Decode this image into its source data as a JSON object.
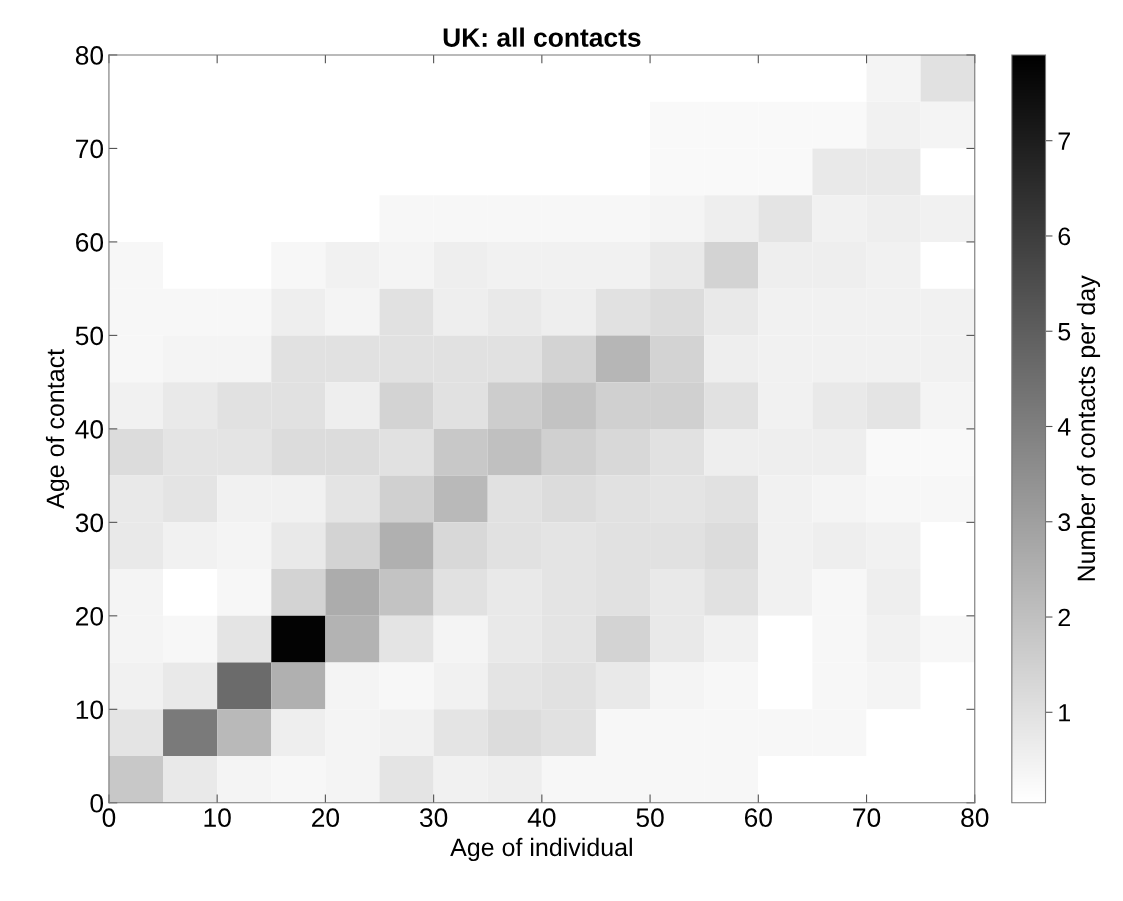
{
  "chart_data": {
    "type": "heatmap",
    "title": "UK: all contacts",
    "xlabel": "Age of individual",
    "ylabel": "Age of contact",
    "clabel": "Number of contacts per day",
    "x": [
      2.5,
      7.5,
      12.5,
      17.5,
      22.5,
      27.5,
      32.5,
      37.5,
      42.5,
      47.5,
      52.5,
      57.5,
      62.5,
      67.5,
      72.5,
      77.5
    ],
    "y": [
      77.5,
      72.5,
      67.5,
      62.5,
      57.5,
      52.5,
      47.5,
      42.5,
      37.5,
      32.5,
      27.5,
      22.5,
      17.5,
      12.5,
      7.5,
      2.5
    ],
    "cells": [
      [
        0.05,
        0.05,
        0.05,
        0.05,
        0.05,
        0.05,
        0.05,
        0.05,
        0.05,
        0.05,
        0.05,
        0.05,
        0.05,
        0.05,
        0.4,
        1.0
      ],
      [
        0.05,
        0.05,
        0.05,
        0.05,
        0.05,
        0.05,
        0.05,
        0.05,
        0.05,
        0.05,
        0.25,
        0.25,
        0.25,
        0.25,
        0.5,
        0.4
      ],
      [
        0.05,
        0.05,
        0.05,
        0.05,
        0.05,
        0.05,
        0.05,
        0.05,
        0.05,
        0.05,
        0.25,
        0.25,
        0.25,
        0.75,
        0.75,
        0.05
      ],
      [
        0.05,
        0.05,
        0.05,
        0.05,
        0.05,
        0.3,
        0.3,
        0.3,
        0.3,
        0.3,
        0.4,
        0.6,
        0.9,
        0.5,
        0.6,
        0.5
      ],
      [
        0.3,
        0.05,
        0.05,
        0.3,
        0.5,
        0.4,
        0.6,
        0.5,
        0.5,
        0.5,
        0.75,
        1.4,
        0.6,
        0.6,
        0.5,
        0.05
      ],
      [
        0.3,
        0.3,
        0.3,
        0.6,
        0.4,
        1.0,
        0.6,
        0.75,
        0.6,
        1.0,
        1.15,
        0.75,
        0.5,
        0.5,
        0.5,
        0.5
      ],
      [
        0.3,
        0.4,
        0.4,
        1.0,
        1.0,
        1.0,
        1.0,
        1.0,
        1.4,
        2.3,
        1.4,
        0.6,
        0.5,
        0.5,
        0.5,
        0.5
      ],
      [
        0.5,
        0.75,
        1.0,
        1.0,
        0.6,
        1.4,
        1.0,
        1.6,
        1.9,
        1.5,
        1.5,
        1.0,
        0.5,
        0.75,
        0.9,
        0.4
      ],
      [
        1.15,
        0.9,
        0.9,
        1.15,
        1.15,
        1.0,
        1.75,
        2.0,
        1.5,
        1.25,
        1.0,
        0.6,
        0.6,
        0.6,
        0.25,
        0.25
      ],
      [
        0.75,
        0.9,
        0.5,
        0.5,
        0.9,
        1.5,
        2.2,
        1.0,
        1.15,
        1.0,
        0.9,
        1.0,
        0.5,
        0.4,
        0.3,
        0.3
      ],
      [
        0.75,
        0.5,
        0.4,
        0.75,
        1.4,
        2.5,
        1.25,
        1.0,
        0.9,
        1.0,
        1.0,
        1.15,
        0.5,
        0.6,
        0.5,
        0.05
      ],
      [
        0.4,
        0.05,
        0.3,
        1.4,
        2.6,
        1.9,
        1.0,
        0.75,
        0.9,
        1.0,
        0.75,
        1.0,
        0.5,
        0.3,
        0.6,
        0.05
      ],
      [
        0.4,
        0.3,
        0.9,
        7.8,
        2.4,
        0.9,
        0.4,
        0.75,
        0.9,
        1.4,
        0.75,
        0.5,
        0.05,
        0.3,
        0.5,
        0.3
      ],
      [
        0.5,
        0.75,
        4.6,
        2.5,
        0.4,
        0.3,
        0.5,
        0.9,
        1.0,
        0.75,
        0.4,
        0.3,
        0.05,
        0.3,
        0.4,
        0.05
      ],
      [
        0.9,
        4.15,
        2.2,
        0.6,
        0.4,
        0.5,
        0.9,
        1.15,
        1.0,
        0.3,
        0.3,
        0.3,
        0.3,
        0.3,
        0.05,
        0.05
      ],
      [
        1.75,
        0.75,
        0.4,
        0.3,
        0.4,
        0.9,
        0.5,
        0.6,
        0.3,
        0.3,
        0.3,
        0.3,
        0.05,
        0.05,
        0.05,
        0.05
      ]
    ],
    "colors": [
      "#ffffff",
      "#000000"
    ],
    "clim": [
      0.05,
      7.9
    ],
    "cticks": [
      1,
      2,
      3,
      4,
      5,
      6,
      7
    ],
    "xlim": [
      0,
      80
    ],
    "ylim": [
      0,
      80
    ],
    "xticks": [
      0,
      10,
      20,
      30,
      40,
      50,
      60,
      70,
      80
    ],
    "yticks": [
      0,
      10,
      20,
      30,
      40,
      50,
      60,
      70,
      80
    ],
    "grid": false
  }
}
